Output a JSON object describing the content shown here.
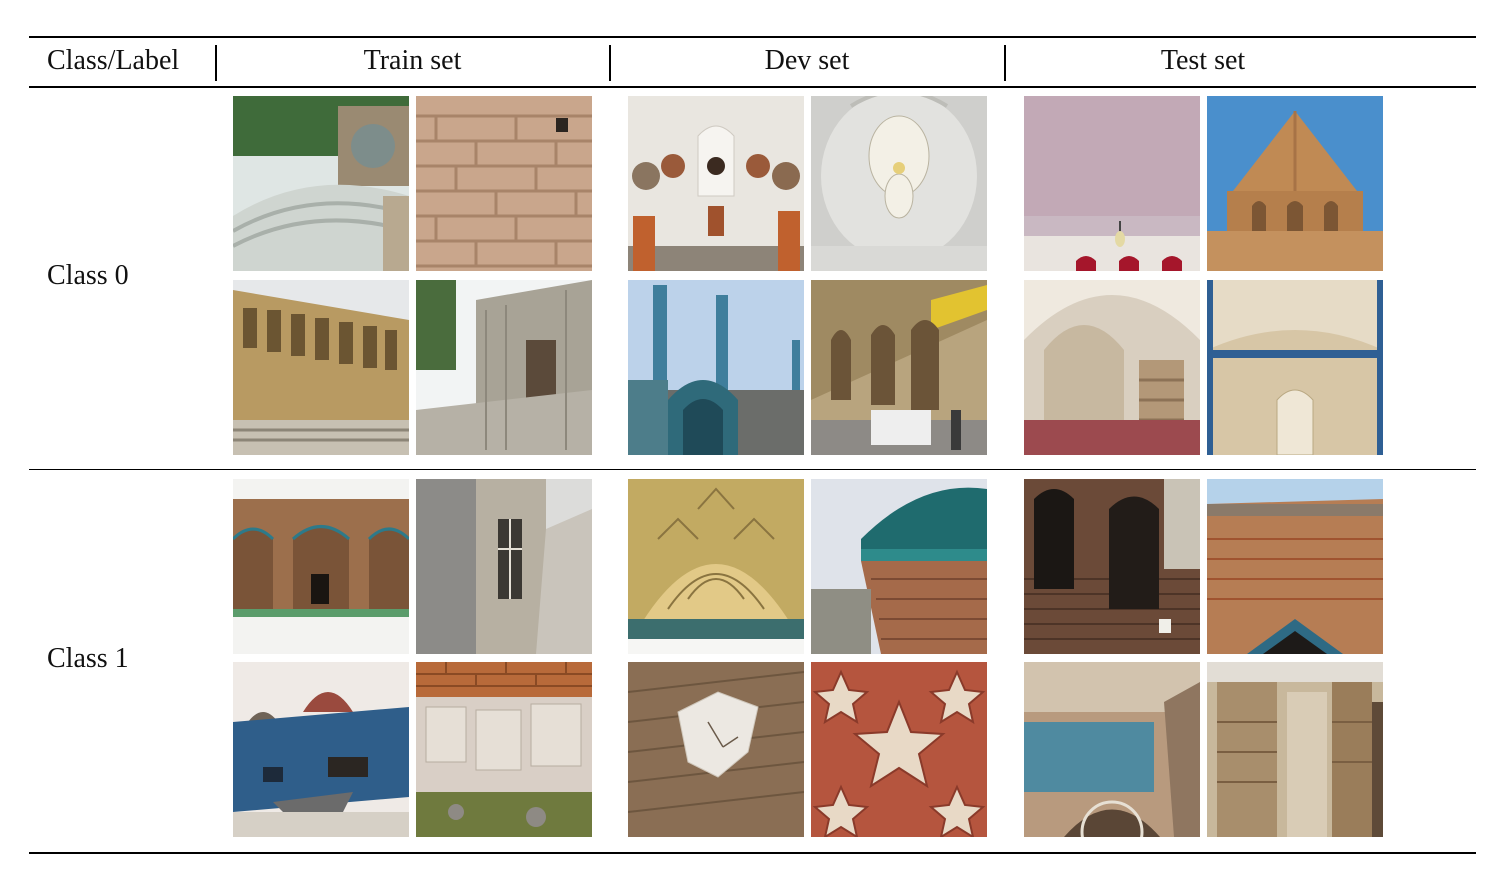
{
  "header": {
    "class_label": "Class/Label",
    "train": "Train set",
    "dev": "Dev set",
    "test": "Test set"
  },
  "rows": [
    {
      "label": "Class 0",
      "images": {
        "train": [
          "vaulted-roof-garden-icon",
          "brick-pattern-wall-icon",
          "facade-arched-windows-icon",
          "ornate-building-courtyard-icon"
        ],
        "dev": [
          "museum-busts-room-icon",
          "chandelier-dome-icon",
          "mosque-minarets-icon",
          "arcade-corridor-icon"
        ],
        "test": [
          "ceiling-stained-glass-icon",
          "brick-conical-dome-icon",
          "arched-hall-pillars-icon",
          "tiled-arch-niche-icon"
        ]
      }
    },
    {
      "label": "Class 1",
      "images": {
        "train": [
          "brick-arcade-wall-icon",
          "ruined-window-facade-icon",
          "blue-domed-building-icon",
          "crumbling-stone-wall-icon"
        ],
        "dev": [
          "muqarnas-vault-icon",
          "tiled-dome-cracks-icon",
          "damaged-ceiling-plaster-icon",
          "geometric-star-ceiling-icon"
        ],
        "test": [
          "burnt-brick-arches-icon",
          "eroded-wall-top-icon",
          "damaged-window-arch-icon",
          "ruined-brick-facade-icon"
        ]
      }
    }
  ]
}
